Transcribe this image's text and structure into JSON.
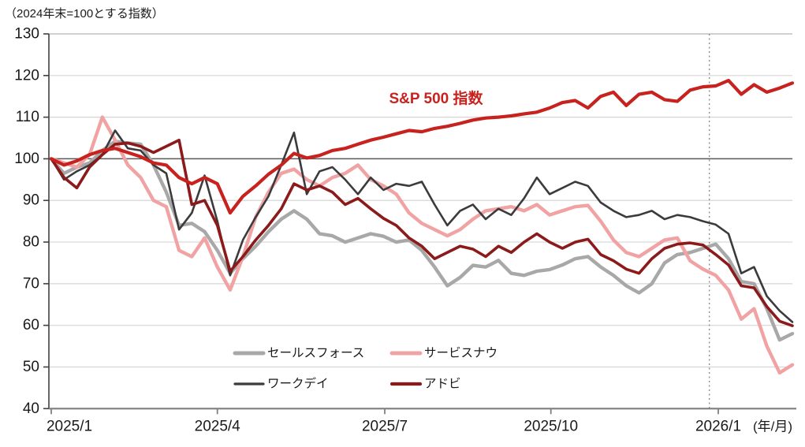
{
  "title": "（2024年末=100とする指数）",
  "annotations": {
    "sp_label": "S&P 500 指数",
    "x_unit_label": "(年/月)"
  },
  "chart_data": {
    "type": "line",
    "title": "（2024年末=100とする指数）",
    "x_axis": {
      "unit_label": "(年/月)",
      "max_week": 58,
      "ticks": [
        {
          "week": 0,
          "label": "2025/1"
        },
        {
          "week": 13.0,
          "label": "2025/4"
        },
        {
          "week": 26.1,
          "label": "2025/7"
        },
        {
          "week": 39.1,
          "label": "2025/10"
        },
        {
          "week": 52.2,
          "label": "2026/1"
        }
      ]
    },
    "y_axis": {
      "min": 40,
      "max": 130,
      "step": 10,
      "ref_line": 100,
      "tick_labels": [
        40,
        50,
        60,
        70,
        80,
        90,
        100,
        110,
        120,
        130
      ]
    },
    "divider_week": 51.5,
    "legend_position": "bottom-center",
    "grid": true,
    "series": [
      {
        "name": "セールスフォース",
        "key": "salesforce",
        "color": "#a8a8a8",
        "width": 4.4,
        "legend": true,
        "values": [
          100,
          96.5,
          98,
          99,
          102,
          104.2,
          103.8,
          103.5,
          98.5,
          92,
          84,
          84.5,
          82.5,
          78,
          72.5,
          76,
          79,
          82.5,
          85.5,
          87.5,
          85.5,
          82,
          81.5,
          80,
          81,
          82,
          81.4,
          80,
          80.5,
          78,
          74,
          69.5,
          71.5,
          74.4,
          74,
          75.6,
          72.5,
          72,
          73,
          73.4,
          74.5,
          76,
          76.5,
          74,
          72,
          69.5,
          67.8,
          70,
          75,
          77,
          77.5,
          78.5,
          79.5,
          76,
          70.5,
          70,
          64,
          56.5,
          58
        ]
      },
      {
        "name": "サービスナウ",
        "key": "servicenow",
        "color": "#f1a3a4",
        "width": 4.4,
        "legend": true,
        "values": [
          100,
          99,
          98,
          101,
          110,
          104.5,
          98.5,
          95.5,
          90,
          88.5,
          78,
          76.5,
          81,
          74,
          68.5,
          76.5,
          86,
          92,
          96.5,
          97.5,
          95,
          93.5,
          95.5,
          96.5,
          98.5,
          95,
          93.5,
          91.5,
          87,
          84.5,
          83,
          81.5,
          83,
          85.5,
          87.5,
          88,
          88.5,
          87.5,
          89,
          86.5,
          87.5,
          88.5,
          88.8,
          85,
          80.5,
          77.5,
          76.5,
          78.5,
          80.5,
          81,
          75.5,
          73.5,
          72,
          68.5,
          61.5,
          64,
          55,
          48.6,
          50.5
        ]
      },
      {
        "name": "ワークデイ",
        "key": "workday",
        "color": "#3b3b3d",
        "width": 2.6,
        "legend": true,
        "values": [
          100,
          95,
          97,
          98.5,
          101,
          106.8,
          102.5,
          102,
          98.5,
          96.5,
          83,
          87,
          96,
          85,
          72,
          80.5,
          86,
          91,
          98.5,
          106.3,
          91.5,
          97,
          98,
          95,
          91.5,
          95.5,
          92.5,
          94,
          93.5,
          94.5,
          89,
          84,
          87.5,
          89,
          85.5,
          88,
          86.5,
          90.5,
          95.5,
          91.5,
          93,
          94.5,
          93.5,
          89.5,
          87.5,
          86,
          86.5,
          87.5,
          85.5,
          86.5,
          86,
          85,
          84.2,
          82,
          72.5,
          74,
          67,
          63.5,
          60.8
        ]
      },
      {
        "name": "アドビ",
        "key": "adobe",
        "color": "#8c1a1a",
        "width": 3.6,
        "legend": true,
        "values": [
          100,
          95.5,
          93,
          98,
          101,
          103.5,
          103.8,
          103,
          101.5,
          103,
          104.5,
          89,
          90,
          84,
          73,
          76.5,
          80.5,
          84,
          88,
          94,
          92.5,
          93.5,
          92,
          89,
          90.5,
          88,
          85.7,
          84,
          81,
          79,
          76,
          77.5,
          79,
          78.3,
          76.5,
          79,
          77.5,
          80,
          82,
          80,
          78.5,
          80,
          80.7,
          77,
          75.5,
          73.5,
          72.5,
          76,
          78.5,
          79.5,
          79.8,
          79.3,
          77,
          74.5,
          69.5,
          69,
          64.5,
          61,
          59.9
        ]
      },
      {
        "name": "S&P 500 指数",
        "key": "sp500",
        "color": "#c8221f",
        "width": 4.2,
        "legend": false,
        "values": [
          100,
          98.5,
          99.5,
          101,
          102,
          102.5,
          101.5,
          100.5,
          99,
          98.5,
          95.5,
          94,
          95.5,
          94,
          87,
          91,
          93.5,
          96.3,
          98.5,
          101.3,
          100.2,
          100.8,
          102,
          102.5,
          103.5,
          104.5,
          105.2,
          106,
          106.8,
          106.5,
          107.3,
          107.8,
          108.5,
          109.3,
          109.8,
          110,
          110.3,
          110.8,
          111.2,
          112.2,
          113.5,
          114,
          112.2,
          115,
          116,
          112.8,
          115.5,
          116,
          114.2,
          113.8,
          116.5,
          117.3,
          117.5,
          118.8,
          115.5,
          117.8,
          116,
          117,
          118.2
        ]
      }
    ]
  }
}
